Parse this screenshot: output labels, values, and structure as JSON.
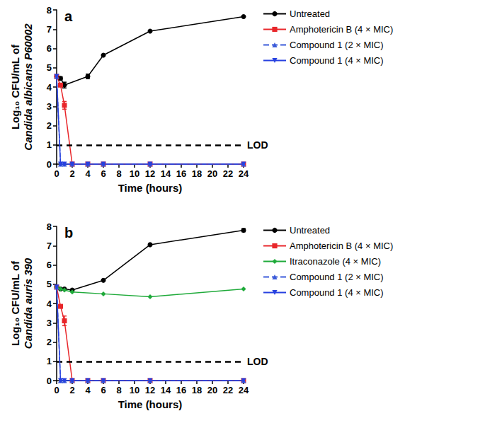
{
  "chart_data": [
    {
      "type": "line",
      "title": "a",
      "xlabel": "Time (hours)",
      "ylabel": [
        "Log₁₀ CFU/mL of",
        "Candida albicans P60002"
      ],
      "xlim": [
        0,
        24
      ],
      "xticks": [
        0,
        2,
        4,
        6,
        8,
        10,
        12,
        14,
        16,
        18,
        20,
        22,
        24
      ],
      "ylim": [
        0,
        8
      ],
      "yticks": [
        0,
        1,
        2,
        3,
        4,
        5,
        6,
        7,
        8
      ],
      "grid": false,
      "legend": "right",
      "annotations": [
        {
          "value": 1,
          "label": "LOD"
        }
      ],
      "series": [
        {
          "name": "Untreated",
          "color": "#000000",
          "marker": "circle",
          "line_style": "solid",
          "x": [
            0,
            0.5,
            1,
            4,
            6,
            12,
            24
          ],
          "values": [
            4.55,
            4.45,
            4.1,
            4.55,
            5.65,
            6.9,
            7.65
          ],
          "errors": [
            null,
            0.08,
            0.15,
            0.12,
            null,
            null,
            null
          ]
        },
        {
          "name": "Amphotericin B (4 × MIC)",
          "color": "#e8262a",
          "marker": "square",
          "line_style": "solid",
          "x": [
            0,
            0.5,
            1,
            2,
            4,
            6,
            12,
            24
          ],
          "values": [
            4.55,
            4.1,
            3.05,
            0,
            0,
            0,
            0,
            0
          ],
          "errors": [
            null,
            0.08,
            0.2,
            null,
            null,
            null,
            null,
            null
          ]
        },
        {
          "name": "Compound 1 (2 × MIC)",
          "color": "#3b5bd9",
          "marker": "triangle",
          "line_style": "dashed",
          "x": [
            0,
            0.5,
            1,
            2,
            4,
            6,
            12,
            24
          ],
          "values": [
            4.55,
            0,
            0,
            0,
            0,
            0,
            0,
            0
          ]
        },
        {
          "name": "Compound 1 (4 × MIC)",
          "color": "#2741e0",
          "marker": "triangle-down",
          "line_style": "solid",
          "x": [
            0,
            0.5,
            1,
            2,
            4,
            6,
            12,
            24
          ],
          "values": [
            4.55,
            0,
            0,
            0,
            0,
            0,
            0,
            0
          ]
        }
      ]
    },
    {
      "type": "line",
      "title": "b",
      "xlabel": "Time (hours)",
      "ylabel": [
        "Log₁₀ CFU/mL of",
        "Candida auris 390"
      ],
      "xlim": [
        0,
        24
      ],
      "xticks": [
        0,
        2,
        4,
        6,
        8,
        10,
        12,
        14,
        16,
        18,
        20,
        22,
        24
      ],
      "ylim": [
        0,
        8
      ],
      "yticks": [
        0,
        1,
        2,
        3,
        4,
        5,
        6,
        7,
        8
      ],
      "grid": false,
      "legend": "right",
      "annotations": [
        {
          "value": 1,
          "label": "LOD"
        }
      ],
      "series": [
        {
          "name": "Untreated",
          "color": "#000000",
          "marker": "circle",
          "line_style": "solid",
          "x": [
            0,
            0.5,
            1,
            2,
            6,
            12,
            24
          ],
          "values": [
            4.85,
            4.75,
            4.75,
            4.7,
            5.2,
            7.05,
            7.8
          ],
          "errors": [
            null,
            null,
            null,
            null,
            null,
            null,
            0.08
          ]
        },
        {
          "name": "Amphotericin B (4 × MIC)",
          "color": "#e8262a",
          "marker": "square",
          "line_style": "solid",
          "x": [
            0,
            0.5,
            1,
            2,
            4,
            6,
            12,
            24
          ],
          "values": [
            4.85,
            3.85,
            3.1,
            0,
            0,
            0,
            0,
            0
          ],
          "errors": [
            null,
            0.08,
            0.25,
            null,
            null,
            null,
            null,
            null
          ]
        },
        {
          "name": "Itraconazole (4 × MIC)",
          "color": "#1faa3a",
          "marker": "diamond",
          "line_style": "solid",
          "x": [
            0,
            0.5,
            1,
            2,
            6,
            12,
            24
          ],
          "values": [
            4.85,
            4.75,
            4.7,
            4.6,
            4.5,
            4.35,
            4.75
          ]
        },
        {
          "name": "Compound 1 (2 × MIC)",
          "color": "#3b5bd9",
          "marker": "triangle",
          "line_style": "dashed",
          "x": [
            0,
            0.5,
            1,
            2,
            4,
            6,
            12,
            24
          ],
          "values": [
            4.85,
            0,
            0,
            0,
            0,
            0,
            0,
            0
          ]
        },
        {
          "name": "Compound 1 (4 × MIC)",
          "color": "#2741e0",
          "marker": "triangle-down",
          "line_style": "solid",
          "x": [
            0,
            0.5,
            1,
            2,
            4,
            6,
            12,
            24
          ],
          "values": [
            4.85,
            0,
            0,
            0,
            0,
            0,
            0,
            0
          ]
        }
      ]
    }
  ]
}
